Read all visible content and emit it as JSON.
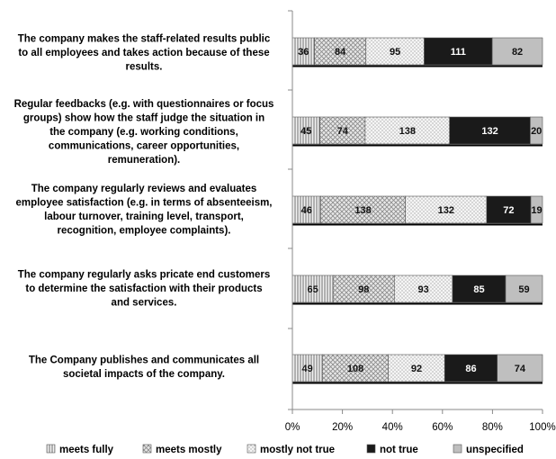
{
  "chart_data": {
    "type": "bar",
    "orientation": "horizontal",
    "stacked": "percent",
    "categories": [
      "The company makes the staff-related results public to all employees and takes action because of these results.",
      "Regular feedbacks (e.g. with questionnaires or focus groups) show how the staff judge the situation in the company (e.g. working conditions, communications, career opportunities, remuneration).",
      "The company regularly reviews and evaluates employee satisfaction (e.g. in terms of absenteeism, labour turnover, training level, transport, recognition, employee complaints).",
      "The company regularly asks pricate end customers to determine the satisfaction with their products and services.",
      "The Company publishes and communicates all societal impacts of the company."
    ],
    "category_lines": [
      [
        "The company makes the staff-related results public",
        "to all employees and takes action because of these",
        "results."
      ],
      [
        "Regular feedbacks (e.g. with questionnaires or focus",
        "groups) show how the staff judge the situation in",
        "the company (e.g. working conditions,",
        "communications, career opportunities,",
        "remuneration)."
      ],
      [
        "The company regularly reviews and evaluates",
        "employee satisfaction (e.g. in terms of absenteeism,",
        "labour turnover, training level, transport,",
        "recognition, employee complaints)."
      ],
      [
        "The company regularly asks pricate end customers",
        "to determine the satisfaction with their products",
        "and services."
      ],
      [
        "The Company publishes and communicates all",
        "societal impacts of the company."
      ]
    ],
    "series": [
      {
        "name": "meets fully",
        "values": [
          36,
          45,
          46,
          65,
          49
        ],
        "pattern": "vertical-lines",
        "color": "#bdbdbd"
      },
      {
        "name": "meets mostly",
        "values": [
          84,
          74,
          138,
          98,
          108
        ],
        "pattern": "crosshatch",
        "color": "#cfcfcf"
      },
      {
        "name": "mostly not true",
        "values": [
          95,
          138,
          132,
          93,
          92
        ],
        "pattern": "dots",
        "color": "#e6e6e6"
      },
      {
        "name": "not true",
        "values": [
          111,
          132,
          72,
          85,
          86
        ],
        "pattern": "solid",
        "color": "#1a1a1a"
      },
      {
        "name": "unspecified",
        "values": [
          82,
          20,
          19,
          59,
          74
        ],
        "pattern": "solid",
        "color": "#bfbfbf"
      }
    ],
    "x_ticks": [
      "0%",
      "20%",
      "40%",
      "60%",
      "80%",
      "100%"
    ],
    "xlim": [
      0,
      100
    ],
    "grid": false,
    "legend_position": "bottom"
  }
}
